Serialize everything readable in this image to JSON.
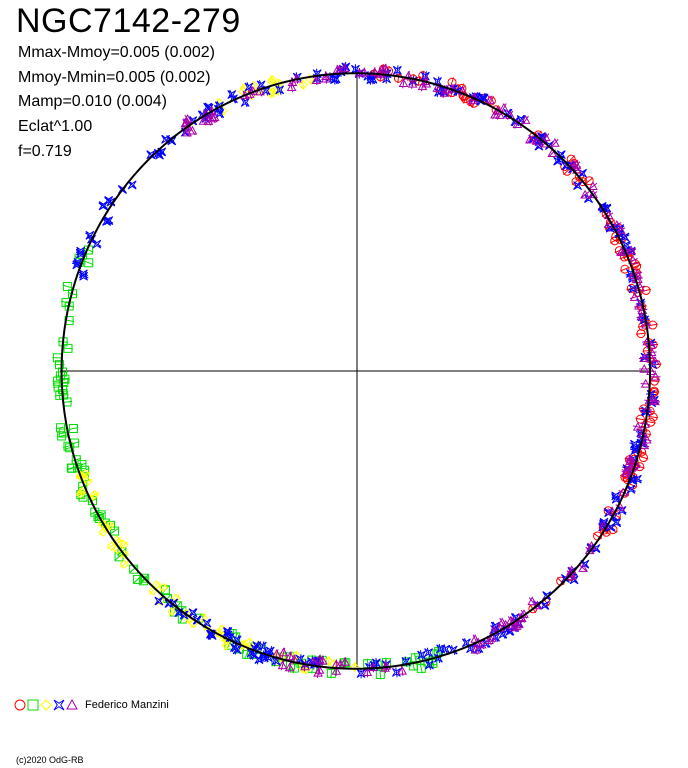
{
  "header": {
    "title": "NGC7142-279",
    "stats": [
      "Mmax-Mmoy=0.005 (0.002)",
      "Mmoy-Mmin=0.005 (0.002)",
      "Mamp=0.010 (0.004)",
      "Eclat^1.00",
      "f=0.719"
    ]
  },
  "legend": {
    "author": "Federico Manzini",
    "markers": [
      {
        "name": "circle-marker",
        "symbol": "circle",
        "color": "#ff0000"
      },
      {
        "name": "square-marker",
        "symbol": "square",
        "color": "#00dd00"
      },
      {
        "name": "diamond-marker",
        "symbol": "diamond",
        "color": "#ffff00"
      },
      {
        "name": "star-marker",
        "symbol": "star",
        "color": "#0000ff"
      },
      {
        "name": "triangle-marker",
        "symbol": "triangle",
        "color": "#aa00aa"
      }
    ]
  },
  "footer": {
    "copyright": "(c)2020 OdG-RB"
  },
  "chart_data": {
    "type": "scatter",
    "title": "NGC7142-279",
    "projection": "polar",
    "description_key": "phase-folded light curve plotted in polar form; angle = phase (0 at top, clockwise), radius = normalized brightness",
    "phase_range": [
      0,
      1
    ],
    "radius_unit": "relative to mean circle",
    "series": [
      {
        "symbol": "circle",
        "color": "#ff0000",
        "phase_coverage": [
          [
            0.0,
            0.08
          ],
          [
            0.1,
            0.4
          ]
        ]
      },
      {
        "symbol": "square",
        "color": "#00dd00",
        "phase_coverage": [
          [
            0.45,
            0.82
          ]
        ]
      },
      {
        "symbol": "diamond",
        "color": "#ffff00",
        "phase_coverage": [
          [
            0.5,
            0.7
          ],
          [
            0.92,
            0.98
          ]
        ]
      },
      {
        "symbol": "star",
        "color": "#0000ff",
        "phase_coverage": [
          [
            0.0,
            0.62
          ],
          [
            0.8,
            1.0
          ]
        ]
      },
      {
        "symbol": "triangle",
        "color": "#aa00aa",
        "phase_coverage": [
          [
            0.0,
            0.45
          ],
          [
            0.47,
            0.55
          ],
          [
            0.9,
            1.0
          ]
        ]
      }
    ],
    "fit_curve": {
      "color": "#000000",
      "mean_radius": 1.0,
      "amplitude": 0.01
    },
    "axes": {
      "crosshair": true
    }
  }
}
